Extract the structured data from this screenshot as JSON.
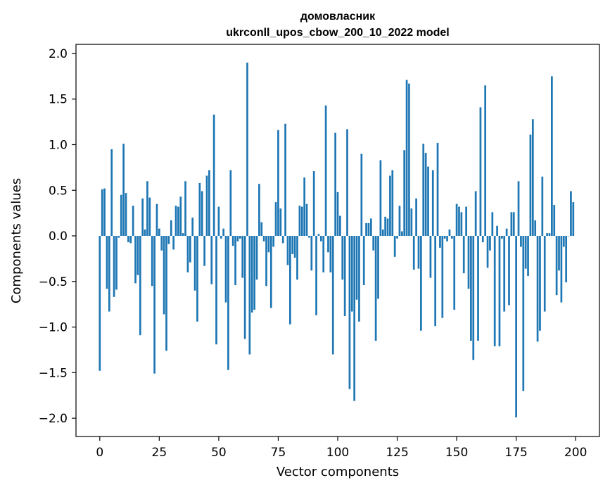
{
  "chart_data": {
    "type": "bar",
    "title_line1": "домовласник",
    "title_line2": "ukrconll_upos_cbow_200_10_2022 model",
    "xlabel": "Vector components",
    "ylabel": "Components values",
    "xlim": [
      -10,
      210
    ],
    "ylim": [
      -2.2,
      2.1
    ],
    "xticks": [
      0,
      25,
      50,
      75,
      100,
      125,
      150,
      175,
      200
    ],
    "yticks": [
      -2.0,
      -1.5,
      -1.0,
      -0.5,
      0.0,
      0.5,
      1.0,
      1.5,
      2.0
    ],
    "ytick_labels": [
      "−2.0",
      "−1.5",
      "−1.0",
      "−0.5",
      "0.0",
      "0.5",
      "1.0",
      "1.5",
      "2.0"
    ],
    "color": "#1f77b4",
    "values": [
      -1.48,
      0.51,
      0.52,
      -0.58,
      -0.83,
      0.95,
      -0.67,
      -0.59,
      -0.02,
      0.45,
      1.01,
      0.47,
      -0.07,
      -0.08,
      0.33,
      -0.52,
      -0.43,
      -1.09,
      0.41,
      0.07,
      0.6,
      0.42,
      -0.55,
      -1.51,
      0.35,
      0.08,
      -0.16,
      -0.86,
      -1.26,
      -0.09,
      0.17,
      -0.15,
      0.33,
      0.32,
      0.43,
      0.03,
      0.6,
      -0.4,
      -0.29,
      0.2,
      -0.6,
      -0.94,
      0.58,
      0.49,
      -0.33,
      0.66,
      0.72,
      -0.53,
      1.33,
      -1.19,
      0.32,
      -0.03,
      0.08,
      -0.73,
      -1.47,
      0.72,
      -0.11,
      -0.54,
      -0.06,
      -0.03,
      -0.46,
      -1.13,
      1.9,
      -1.3,
      -0.84,
      -0.81,
      -0.48,
      0.57,
      0.15,
      -0.06,
      -0.55,
      -0.18,
      -0.79,
      -0.12,
      0.37,
      1.16,
      0.3,
      -0.08,
      1.23,
      -0.32,
      -0.97,
      -0.2,
      -0.24,
      -0.48,
      0.33,
      0.32,
      0.64,
      0.35,
      -0.02,
      -0.38,
      0.71,
      -0.87,
      0.02,
      -0.06,
      -0.4,
      1.43,
      -0.18,
      -0.4,
      -1.3,
      1.13,
      0.48,
      0.22,
      -0.48,
      -0.88,
      1.17,
      -1.68,
      -0.83,
      -1.81,
      -0.7,
      -0.94,
      0.9,
      -0.54,
      0.14,
      0.14,
      0.19,
      -0.16,
      -1.15,
      -0.69,
      0.83,
      0.07,
      0.21,
      0.19,
      0.66,
      0.72,
      -0.23,
      -0.03,
      0.33,
      0.05,
      0.94,
      1.71,
      1.67,
      0.3,
      -0.37,
      0.41,
      -0.36,
      -1.04,
      1.01,
      0.91,
      0.76,
      -0.46,
      0.72,
      -0.99,
      1.02,
      -0.13,
      -0.9,
      -0.03,
      -0.06,
      0.07,
      -0.03,
      -0.81,
      0.35,
      0.32,
      0.26,
      -0.41,
      0.32,
      -0.58,
      -1.15,
      -1.36,
      0.49,
      -1.15,
      1.41,
      -0.07,
      1.65,
      -0.35,
      -0.16,
      0.26,
      -1.21,
      0.11,
      -1.21,
      -0.03,
      -0.83,
      0.08,
      -0.76,
      0.26,
      0.26,
      -1.99,
      0.6,
      -0.12,
      -1.7,
      -0.36,
      -0.44,
      1.11,
      1.28,
      0.17,
      -1.16,
      -1.04,
      0.65,
      -0.83,
      0.03,
      0.03,
      1.75,
      0.34,
      -0.65,
      -0.38,
      -0.73,
      -0.12,
      -0.51,
      0.0,
      0.49,
      0.37
    ]
  }
}
